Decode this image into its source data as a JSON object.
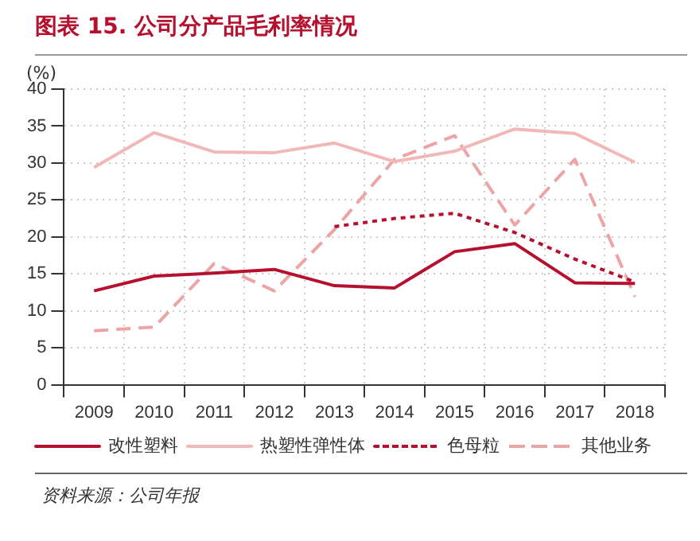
{
  "chart_data": {
    "type": "line",
    "title": "图表 15. 公司分产品毛利率情况",
    "ylabel": "(%)",
    "categories": [
      "2009",
      "2010",
      "2011",
      "2012",
      "2013",
      "2014",
      "2015",
      "2016",
      "2017",
      "2018"
    ],
    "series": [
      {
        "name": "改性塑料",
        "color": "#b5102e",
        "line_style": "solid",
        "values": [
          12.7,
          14.7,
          15.1,
          15.6,
          13.4,
          13.1,
          18.0,
          19.1,
          13.8,
          13.7
        ]
      },
      {
        "name": "热塑性弹性体",
        "color": "#f2b8b8",
        "line_style": "solid",
        "values": [
          29.4,
          34.1,
          31.5,
          31.4,
          32.7,
          30.2,
          31.6,
          34.6,
          34.0,
          30.1
        ]
      },
      {
        "name": "色母粒",
        "color": "#b5102e",
        "line_style": "dotted",
        "values": [
          null,
          null,
          null,
          null,
          21.4,
          22.5,
          23.2,
          20.6,
          17.0,
          13.9
        ]
      },
      {
        "name": "其他业务",
        "color": "#eca4a4",
        "line_style": "dashed",
        "values": [
          7.3,
          7.8,
          16.4,
          12.7,
          21.0,
          30.5,
          33.7,
          21.6,
          30.5,
          11.9
        ]
      }
    ],
    "ylim": [
      0,
      40
    ],
    "yticks": [
      0,
      5,
      10,
      15,
      20,
      25,
      30,
      35,
      40
    ],
    "grid": true,
    "legend": "bottom",
    "marker": "none",
    "annotations": [
      "资料来源：公司年报"
    ]
  }
}
